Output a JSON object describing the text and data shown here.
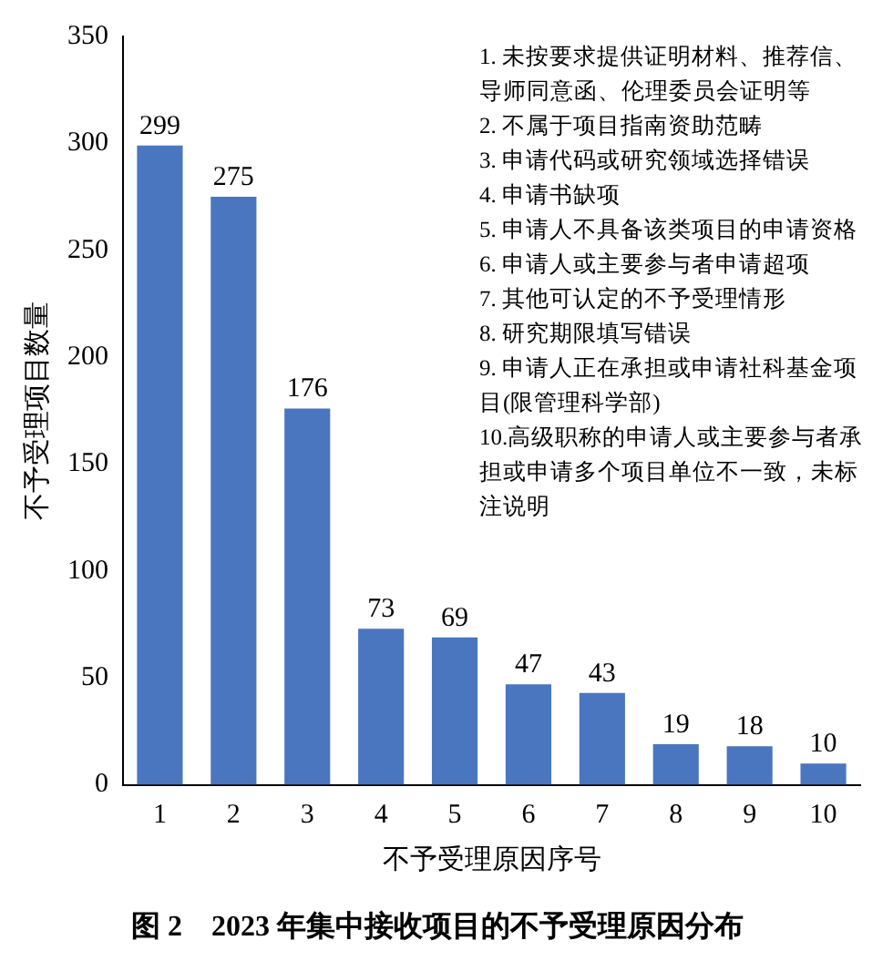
{
  "chart_data": {
    "type": "bar",
    "title": "图 2　2023 年集中接收项目的不予受理原因分布",
    "xlabel": "不予受理原因序号",
    "ylabel": "不予受理项目数量",
    "categories": [
      "1",
      "2",
      "3",
      "4",
      "5",
      "6",
      "7",
      "8",
      "9",
      "10"
    ],
    "values": [
      299,
      275,
      176,
      73,
      69,
      47,
      43,
      19,
      18,
      10
    ],
    "color": "#4a76c0",
    "ylim": [
      0,
      350
    ],
    "yticks": [
      0,
      50,
      100,
      150,
      200,
      250,
      300,
      350
    ],
    "grid": false,
    "data_labels": true,
    "annotations": [
      "1. 未按要求提供证明材料、推荐信、导师同意函、伦理委员会证明等",
      "2. 不属于项目指南资助范畴",
      "3. 申请代码或研究领域选择错误",
      "4. 申请书缺项",
      "5. 申请人不具备该类项目的申请资格",
      "6. 申请人或主要参与者申请超项",
      "7. 其他可认定的不予受理情形",
      "8. 研究期限填写错误",
      "9. 申请人正在承担或申请社科基金项目(限管理科学部)",
      "10.高级职称的申请人或主要参与者承担或申请多个项目单位不一致，未标注说明"
    ]
  }
}
